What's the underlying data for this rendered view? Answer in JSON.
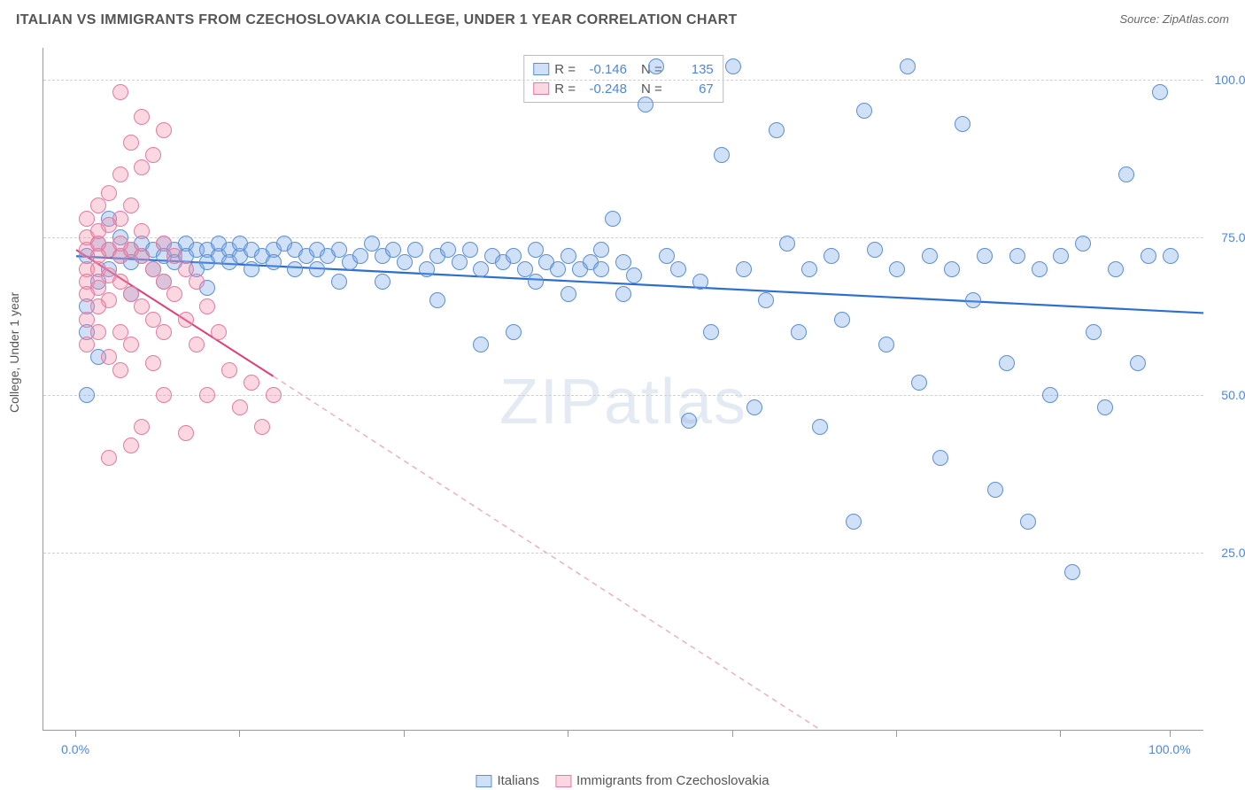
{
  "header": {
    "title": "ITALIAN VS IMMIGRANTS FROM CZECHOSLOVAKIA COLLEGE, UNDER 1 YEAR CORRELATION CHART",
    "source_prefix": "Source: ",
    "source_name": "ZipAtlas.com"
  },
  "chart": {
    "type": "scatter",
    "ylabel": "College, Under 1 year",
    "watermark": "ZIPatlas",
    "xlim": [
      -3,
      103
    ],
    "ylim": [
      -3,
      105
    ],
    "background_color": "#ffffff",
    "grid_color": "#d0d0d0",
    "axis_color": "#999999",
    "tick_label_color": "#4a86e8",
    "yticks": [
      25,
      50,
      75,
      100
    ],
    "ytick_labels": [
      "25.0%",
      "50.0%",
      "75.0%",
      "100.0%"
    ],
    "xticks": [
      0,
      15,
      30,
      45,
      60,
      75,
      90,
      100
    ],
    "xtick_labels": {
      "0": "0.0%",
      "100": "100.0%"
    },
    "marker_radius": 9,
    "marker_border_width": 1.2,
    "series": [
      {
        "id": "italians",
        "label": "Italians",
        "fill": "rgba(120,165,230,0.35)",
        "stroke": "#5b8fd6",
        "R": "-0.146",
        "N": "135",
        "trend": {
          "x1": 0,
          "y1": 72,
          "x2": 103,
          "y2": 63,
          "color": "#2b6fd4",
          "width": 2.2,
          "dash": ""
        },
        "points": [
          [
            1,
            72
          ],
          [
            1,
            60
          ],
          [
            2,
            74
          ],
          [
            2,
            68
          ],
          [
            3,
            73
          ],
          [
            3,
            70
          ],
          [
            4,
            72
          ],
          [
            4,
            75
          ],
          [
            5,
            73
          ],
          [
            5,
            71
          ],
          [
            6,
            72
          ],
          [
            6,
            74
          ],
          [
            7,
            73
          ],
          [
            7,
            70
          ],
          [
            8,
            74
          ],
          [
            8,
            72
          ],
          [
            9,
            73
          ],
          [
            9,
            71
          ],
          [
            10,
            74
          ],
          [
            10,
            72
          ],
          [
            11,
            73
          ],
          [
            11,
            70
          ],
          [
            12,
            73
          ],
          [
            12,
            71
          ],
          [
            13,
            72
          ],
          [
            13,
            74
          ],
          [
            14,
            73
          ],
          [
            14,
            71
          ],
          [
            15,
            72
          ],
          [
            15,
            74
          ],
          [
            16,
            73
          ],
          [
            16,
            70
          ],
          [
            17,
            72
          ],
          [
            18,
            73
          ],
          [
            18,
            71
          ],
          [
            19,
            74
          ],
          [
            20,
            73
          ],
          [
            20,
            70
          ],
          [
            21,
            72
          ],
          [
            22,
            73
          ],
          [
            22,
            70
          ],
          [
            23,
            72
          ],
          [
            24,
            73
          ],
          [
            25,
            71
          ],
          [
            26,
            72
          ],
          [
            27,
            74
          ],
          [
            28,
            72
          ],
          [
            29,
            73
          ],
          [
            30,
            71
          ],
          [
            31,
            73
          ],
          [
            32,
            70
          ],
          [
            33,
            72
          ],
          [
            34,
            73
          ],
          [
            35,
            71
          ],
          [
            36,
            73
          ],
          [
            37,
            70
          ],
          [
            38,
            72
          ],
          [
            39,
            71
          ],
          [
            40,
            72
          ],
          [
            41,
            70
          ],
          [
            42,
            73
          ],
          [
            43,
            71
          ],
          [
            44,
            70
          ],
          [
            45,
            72
          ],
          [
            46,
            70
          ],
          [
            47,
            71
          ],
          [
            37,
            58
          ],
          [
            40,
            60
          ],
          [
            42,
            68
          ],
          [
            45,
            66
          ],
          [
            48,
            70
          ],
          [
            49,
            78
          ],
          [
            50,
            71
          ],
          [
            51,
            69
          ],
          [
            52,
            96
          ],
          [
            53,
            102
          ],
          [
            54,
            72
          ],
          [
            55,
            70
          ],
          [
            56,
            46
          ],
          [
            57,
            68
          ],
          [
            58,
            60
          ],
          [
            59,
            88
          ],
          [
            60,
            102
          ],
          [
            61,
            70
          ],
          [
            62,
            48
          ],
          [
            63,
            65
          ],
          [
            64,
            92
          ],
          [
            65,
            74
          ],
          [
            66,
            60
          ],
          [
            67,
            70
          ],
          [
            68,
            45
          ],
          [
            69,
            72
          ],
          [
            70,
            62
          ],
          [
            71,
            30
          ],
          [
            72,
            95
          ],
          [
            73,
            73
          ],
          [
            74,
            58
          ],
          [
            75,
            70
          ],
          [
            76,
            102
          ],
          [
            77,
            52
          ],
          [
            78,
            72
          ],
          [
            79,
            40
          ],
          [
            80,
            70
          ],
          [
            81,
            93
          ],
          [
            82,
            65
          ],
          [
            83,
            72
          ],
          [
            84,
            35
          ],
          [
            85,
            55
          ],
          [
            86,
            72
          ],
          [
            87,
            30
          ],
          [
            88,
            70
          ],
          [
            89,
            50
          ],
          [
            90,
            72
          ],
          [
            91,
            22
          ],
          [
            92,
            74
          ],
          [
            93,
            60
          ],
          [
            94,
            48
          ],
          [
            95,
            70
          ],
          [
            96,
            85
          ],
          [
            97,
            55
          ],
          [
            98,
            72
          ],
          [
            99,
            98
          ],
          [
            100,
            72
          ],
          [
            48,
            73
          ],
          [
            50,
            66
          ],
          [
            33,
            65
          ],
          [
            28,
            68
          ],
          [
            24,
            68
          ],
          [
            12,
            67
          ],
          [
            8,
            68
          ],
          [
            5,
            66
          ],
          [
            3,
            78
          ],
          [
            2,
            56
          ],
          [
            1,
            50
          ],
          [
            1,
            64
          ]
        ]
      },
      {
        "id": "czech",
        "label": "Immigrants from Czechoslovakia",
        "fill": "rgba(240,140,170,0.35)",
        "stroke": "#e67aa0",
        "R": "-0.248",
        "N": "67",
        "trend_solid": {
          "x1": 0,
          "y1": 73,
          "x2": 18,
          "y2": 53,
          "color": "#e23d77",
          "width": 2,
          "dash": ""
        },
        "trend_dash": {
          "x1": 18,
          "y1": 53,
          "x2": 68,
          "y2": -3,
          "color": "#f2a8c0",
          "width": 1.4,
          "dash": "6 5"
        },
        "points": [
          [
            1,
            73
          ],
          [
            1,
            70
          ],
          [
            1,
            75
          ],
          [
            1,
            68
          ],
          [
            1,
            78
          ],
          [
            2,
            74
          ],
          [
            2,
            70
          ],
          [
            2,
            76
          ],
          [
            2,
            67
          ],
          [
            2,
            80
          ],
          [
            3,
            73
          ],
          [
            3,
            69
          ],
          [
            3,
            77
          ],
          [
            3,
            65
          ],
          [
            3,
            82
          ],
          [
            4,
            72
          ],
          [
            4,
            68
          ],
          [
            4,
            78
          ],
          [
            4,
            60
          ],
          [
            4,
            85
          ],
          [
            5,
            73
          ],
          [
            5,
            66
          ],
          [
            5,
            80
          ],
          [
            5,
            90
          ],
          [
            5,
            58
          ],
          [
            6,
            72
          ],
          [
            6,
            64
          ],
          [
            6,
            86
          ],
          [
            6,
            94
          ],
          [
            7,
            70
          ],
          [
            7,
            62
          ],
          [
            7,
            88
          ],
          [
            7,
            55
          ],
          [
            8,
            68
          ],
          [
            8,
            60
          ],
          [
            8,
            92
          ],
          [
            8,
            50
          ],
          [
            4,
            98
          ],
          [
            5,
            42
          ],
          [
            6,
            45
          ],
          [
            3,
            40
          ],
          [
            2,
            60
          ],
          [
            1,
            62
          ],
          [
            1,
            58
          ],
          [
            2,
            64
          ],
          [
            3,
            56
          ],
          [
            4,
            54
          ],
          [
            9,
            66
          ],
          [
            9,
            72
          ],
          [
            10,
            70
          ],
          [
            10,
            62
          ],
          [
            11,
            68
          ],
          [
            11,
            58
          ],
          [
            12,
            64
          ],
          [
            12,
            50
          ],
          [
            13,
            60
          ],
          [
            14,
            54
          ],
          [
            15,
            48
          ],
          [
            16,
            52
          ],
          [
            17,
            45
          ],
          [
            18,
            50
          ],
          [
            10,
            44
          ],
          [
            8,
            74
          ],
          [
            6,
            76
          ],
          [
            4,
            74
          ],
          [
            2,
            72
          ],
          [
            1,
            66
          ]
        ]
      }
    ],
    "legend_top": {
      "r_label": "R =",
      "n_label": "N ="
    },
    "legend_bottom_labels": [
      "Italians",
      "Immigrants from Czechoslovakia"
    ]
  }
}
